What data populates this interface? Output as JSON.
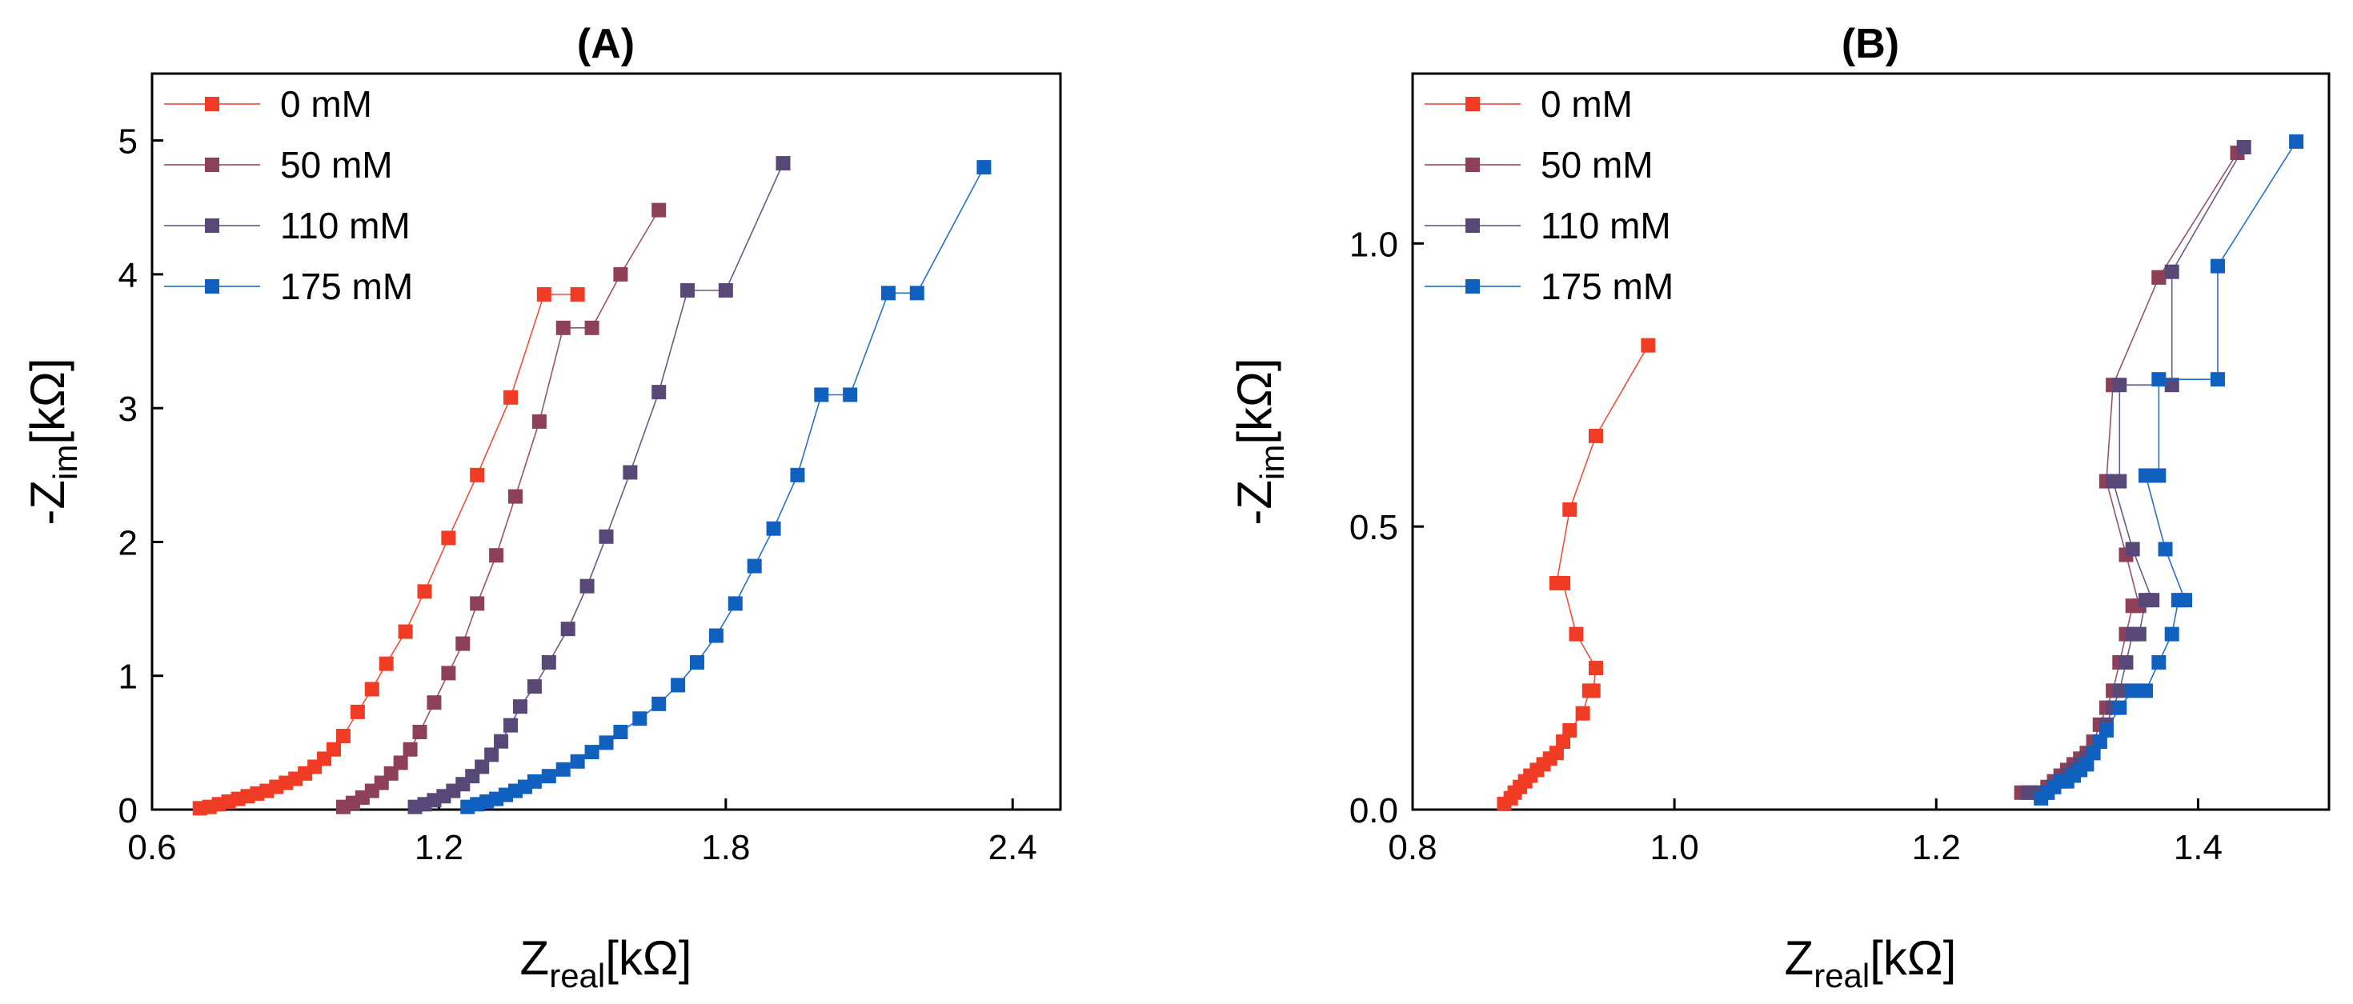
{
  "chart_data": [
    {
      "type": "line",
      "title": "(A)",
      "xlabel": {
        "main": "Z",
        "sub": "real",
        "unit": "[kΩ]"
      },
      "ylabel": {
        "prefix": "-Z",
        "sub": "im",
        "unit": "[kΩ]"
      },
      "xlim": [
        0.6,
        2.5
      ],
      "ylim": [
        0,
        5.5
      ],
      "xticks": [
        0.6,
        1.2,
        1.8,
        2.4
      ],
      "xtick_labels": [
        "0.6",
        "1.2",
        "1.8",
        "2.4"
      ],
      "yticks": [
        0,
        1,
        2,
        3,
        4,
        5
      ],
      "ytick_labels": [
        "0",
        "1",
        "2",
        "3",
        "4",
        "5"
      ],
      "legend": {
        "position": "top-left",
        "entries": [
          "0 mM",
          "50 mM",
          "110 mM",
          "175 mM"
        ]
      },
      "series": [
        {
          "name": "0 mM",
          "color": "#f03c24",
          "x": [
            0.7,
            0.72,
            0.74,
            0.76,
            0.78,
            0.8,
            0.82,
            0.84,
            0.86,
            0.88,
            0.9,
            0.92,
            0.94,
            0.96,
            0.98,
            1.0,
            1.03,
            1.06,
            1.09,
            1.13,
            1.17,
            1.22,
            1.28,
            1.35,
            1.42,
            1.49
          ],
          "y": [
            0.01,
            0.02,
            0.04,
            0.06,
            0.08,
            0.1,
            0.12,
            0.14,
            0.17,
            0.2,
            0.23,
            0.27,
            0.32,
            0.38,
            0.45,
            0.55,
            0.73,
            0.9,
            1.09,
            1.33,
            1.63,
            2.03,
            2.5,
            3.08,
            3.85,
            3.85
          ]
        },
        {
          "name": "50 mM",
          "color": "#8e4058",
          "x": [
            1.0,
            1.02,
            1.04,
            1.06,
            1.08,
            1.1,
            1.12,
            1.14,
            1.16,
            1.19,
            1.22,
            1.25,
            1.28,
            1.32,
            1.36,
            1.41,
            1.46,
            1.52,
            1.58,
            1.66
          ],
          "y": [
            0.02,
            0.05,
            0.09,
            0.14,
            0.2,
            0.27,
            0.35,
            0.45,
            0.58,
            0.8,
            1.02,
            1.24,
            1.54,
            1.9,
            2.34,
            2.9,
            3.6,
            3.6,
            4.0,
            4.48
          ]
        },
        {
          "name": "110 mM",
          "color": "#584878",
          "x": [
            1.15,
            1.17,
            1.19,
            1.21,
            1.23,
            1.25,
            1.27,
            1.29,
            1.31,
            1.33,
            1.35,
            1.37,
            1.4,
            1.43,
            1.47,
            1.51,
            1.55,
            1.6,
            1.66,
            1.72,
            1.8,
            1.92
          ],
          "y": [
            0.02,
            0.04,
            0.07,
            0.1,
            0.14,
            0.19,
            0.25,
            0.32,
            0.41,
            0.51,
            0.63,
            0.77,
            0.92,
            1.1,
            1.35,
            1.67,
            2.04,
            2.52,
            3.12,
            3.88,
            3.88,
            4.83
          ]
        },
        {
          "name": "175 mM",
          "color": "#1060c0",
          "x": [
            1.26,
            1.28,
            1.3,
            1.32,
            1.34,
            1.36,
            1.38,
            1.4,
            1.43,
            1.46,
            1.49,
            1.52,
            1.55,
            1.58,
            1.62,
            1.66,
            1.7,
            1.74,
            1.78,
            1.82,
            1.86,
            1.9,
            1.95,
            2.0,
            2.06,
            2.14,
            2.2,
            2.34
          ],
          "y": [
            0.02,
            0.04,
            0.06,
            0.08,
            0.11,
            0.14,
            0.17,
            0.21,
            0.25,
            0.3,
            0.36,
            0.43,
            0.5,
            0.58,
            0.68,
            0.79,
            0.93,
            1.1,
            1.3,
            1.54,
            1.82,
            2.1,
            2.5,
            3.1,
            3.1,
            3.86,
            3.86,
            4.8
          ]
        }
      ]
    },
    {
      "type": "line",
      "title": "(B)",
      "xlabel": {
        "main": "Z",
        "sub": "real",
        "unit": "[kΩ]"
      },
      "ylabel": {
        "prefix": "-Z",
        "sub": "im",
        "unit": "[kΩ]"
      },
      "xlim": [
        0.8,
        1.5
      ],
      "ylim": [
        0,
        1.3
      ],
      "xticks": [
        0.8,
        1.0,
        1.2,
        1.4
      ],
      "xtick_labels": [
        "0.8",
        "1.0",
        "1.2",
        "1.4"
      ],
      "yticks": [
        0,
        0.5,
        1.0
      ],
      "ytick_labels": [
        "0.0",
        "0.5",
        "1.0"
      ],
      "legend": {
        "position": "top-left",
        "entries": [
          "0 mM",
          "50 mM",
          "110 mM",
          "175 mM"
        ]
      },
      "series": [
        {
          "name": "0 mM",
          "color": "#f03c24",
          "x": [
            0.87,
            0.875,
            0.878,
            0.882,
            0.886,
            0.89,
            0.895,
            0.9,
            0.905,
            0.91,
            0.915,
            0.92,
            0.93,
            0.935,
            0.938,
            0.94,
            0.925,
            0.915,
            0.91,
            0.92,
            0.94,
            0.98
          ],
          "y": [
            0.01,
            0.02,
            0.03,
            0.04,
            0.05,
            0.06,
            0.07,
            0.08,
            0.09,
            0.1,
            0.12,
            0.14,
            0.17,
            0.21,
            0.21,
            0.25,
            0.31,
            0.4,
            0.4,
            0.53,
            0.66,
            0.82
          ]
        },
        {
          "name": "50 mM",
          "color": "#8e4058",
          "x": [
            1.265,
            1.272,
            1.28,
            1.285,
            1.29,
            1.295,
            1.3,
            1.305,
            1.31,
            1.315,
            1.32,
            1.325,
            1.33,
            1.335,
            1.34,
            1.345,
            1.35,
            1.355,
            1.345,
            1.33,
            1.33,
            1.335,
            1.37,
            1.37,
            1.43
          ],
          "y": [
            0.03,
            0.03,
            0.03,
            0.04,
            0.05,
            0.06,
            0.07,
            0.08,
            0.09,
            0.1,
            0.12,
            0.15,
            0.18,
            0.21,
            0.26,
            0.31,
            0.36,
            0.36,
            0.45,
            0.58,
            0.58,
            0.75,
            0.94,
            0.94,
            1.16
          ]
        },
        {
          "name": "110 mM",
          "color": "#584878",
          "x": [
            1.27,
            1.278,
            1.285,
            1.29,
            1.295,
            1.3,
            1.305,
            1.31,
            1.315,
            1.32,
            1.325,
            1.33,
            1.335,
            1.34,
            1.345,
            1.35,
            1.355,
            1.36,
            1.365,
            1.35,
            1.335,
            1.34,
            1.34,
            1.38,
            1.38,
            1.435
          ],
          "y": [
            0.03,
            0.03,
            0.03,
            0.04,
            0.05,
            0.06,
            0.07,
            0.08,
            0.09,
            0.1,
            0.12,
            0.15,
            0.18,
            0.21,
            0.26,
            0.31,
            0.31,
            0.37,
            0.37,
            0.46,
            0.58,
            0.58,
            0.75,
            0.75,
            0.95,
            1.17
          ]
        },
        {
          "name": "175 mM",
          "color": "#1060c0",
          "x": [
            1.28,
            1.285,
            1.29,
            1.295,
            1.3,
            1.305,
            1.31,
            1.315,
            1.32,
            1.325,
            1.33,
            1.34,
            1.35,
            1.36,
            1.37,
            1.38,
            1.385,
            1.39,
            1.375,
            1.36,
            1.37,
            1.37,
            1.415,
            1.415,
            1.475
          ],
          "y": [
            0.02,
            0.03,
            0.04,
            0.05,
            0.05,
            0.06,
            0.07,
            0.08,
            0.1,
            0.12,
            0.14,
            0.18,
            0.21,
            0.21,
            0.26,
            0.31,
            0.37,
            0.37,
            0.46,
            0.59,
            0.59,
            0.76,
            0.76,
            0.96,
            1.18
          ]
        }
      ]
    }
  ]
}
